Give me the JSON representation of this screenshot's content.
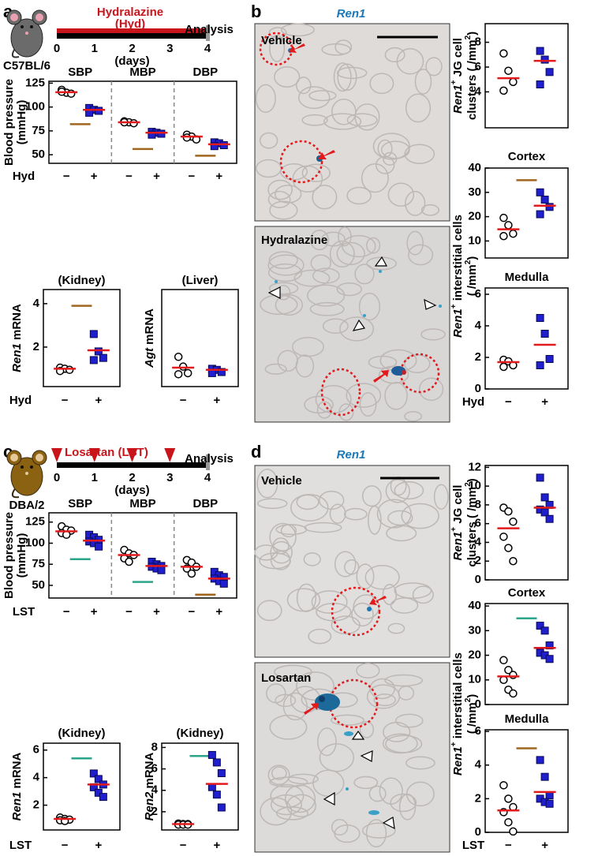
{
  "panels": {
    "a": {
      "letter": "a",
      "drug": "Hydralazine",
      "drug_abbr": "(Hyd)",
      "end": "Analysis",
      "strain": "C57BL/6",
      "days": [
        0,
        1,
        2,
        3,
        4
      ],
      "days_label": "(days)"
    },
    "b": {
      "letter": "b",
      "stain": "Ren1",
      "images": [
        "Vehicle",
        "Hydralazine"
      ],
      "shared_ylabel": [
        [
          {
            "t": "Ren1",
            "i": true
          },
          {
            "t": "+",
            "s": true
          },
          {
            "t": " interstitial cells"
          }
        ],
        [
          {
            "t": "( /mm"
          },
          {
            "t": "2",
            "s": true
          },
          {
            "t": ")"
          }
        ]
      ]
    },
    "c": {
      "letter": "c",
      "drug": "Losartan (LST)",
      "end": "Analysis",
      "strain": "DBA/2",
      "days": [
        0,
        1,
        2,
        3,
        4
      ],
      "dose_days": [
        0,
        1,
        2,
        3
      ],
      "days_label": "(days)"
    },
    "d": {
      "letter": "d",
      "stain": "Ren1",
      "images": [
        "Vehicle",
        "Losartan"
      ],
      "shared_ylabel": [
        [
          {
            "t": "Ren1",
            "i": true
          },
          {
            "t": "+",
            "s": true
          },
          {
            "t": " interstitial cells"
          }
        ],
        [
          {
            "t": "( /mm"
          },
          {
            "t": "2",
            "s": true
          },
          {
            "t": ")"
          }
        ]
      ]
    }
  },
  "chart_data": [
    {
      "type": "dot",
      "ylabel": [
        [
          {
            "t": "Blood pressure"
          }
        ],
        [
          {
            "t": "(mmHg)"
          }
        ]
      ],
      "ylim": [
        41,
        127
      ],
      "yticks": [
        50,
        75,
        100,
        125
      ],
      "x_label": "Hyd",
      "x_categories": [
        "−",
        "+"
      ],
      "marker_colors": [
        "#ffffff",
        "#1f1fd0"
      ],
      "mean_color": "#e31a1c",
      "groups": [
        {
          "label": "SBP",
          "values": [
            [
              118,
              115,
              114,
              116
            ],
            [
              99,
              97,
              96,
              94
            ]
          ],
          "means": [
            115.5,
            97
          ],
          "ref": 82,
          "ref_color": "#a0661e"
        },
        {
          "label": "MBP",
          "values": [
            [
              85,
              84,
              83,
              84
            ],
            [
              74,
              73,
              72,
              71
            ]
          ],
          "means": [
            84,
            73
          ],
          "ref": 56,
          "ref_color": "#a0661e"
        },
        {
          "label": "DBP",
          "values": [
            [
              71,
              69,
              66,
              68
            ],
            [
              63,
              62,
              60,
              59
            ]
          ],
          "means": [
            69,
            61
          ],
          "ref": 49,
          "ref_color": "#a0661e"
        }
      ]
    },
    {
      "type": "dot",
      "title": "(Kidney)",
      "ylabel": [
        [
          {
            "t": "Ren1",
            "i": true
          },
          {
            "t": " mRNA"
          }
        ]
      ],
      "ylim": [
        0.18,
        4.65
      ],
      "yticks": [
        2,
        4
      ],
      "x_label": "Hyd",
      "x_categories": [
        "−",
        "+"
      ],
      "marker_colors": [
        "#ffffff",
        "#1f1fd0"
      ],
      "mean_color": "#e31a1c",
      "groups": [
        {
          "values": [
            [
              1.05,
              1.0,
              0.95,
              0.9
            ],
            [
              2.6,
              1.8,
              1.5,
              1.4
            ]
          ],
          "means": [
            1.0,
            1.85
          ],
          "ref": 3.9,
          "ref_color": "#a0661e"
        }
      ]
    },
    {
      "type": "dot",
      "title": "(Liver)",
      "ylabel": [
        [
          {
            "t": "Agt",
            "i": true
          },
          {
            "t": " mRNA"
          }
        ]
      ],
      "ylim": [
        0.18,
        4.65
      ],
      "yticks": [],
      "x_categories": [
        "−",
        "+"
      ],
      "marker_colors": [
        "#ffffff",
        "#1f1fd0"
      ],
      "mean_color": "#e31a1c",
      "groups": [
        {
          "values": [
            [
              1.55,
              1.1,
              0.8,
              0.75
            ],
            [
              1.0,
              0.95,
              0.85,
              0.8
            ]
          ],
          "means": [
            1.05,
            0.95
          ]
        }
      ]
    },
    {
      "type": "dot",
      "ylabel": [
        [
          {
            "t": "Ren1",
            "i": true
          },
          {
            "t": "+",
            "s": true
          },
          {
            "t": " JG cell"
          }
        ],
        [
          {
            "t": "clusters ( /mm"
          },
          {
            "t": "2",
            "s": true
          },
          {
            "t": ")"
          }
        ]
      ],
      "ylim": [
        1.1,
        9.5
      ],
      "yticks": [
        4,
        6,
        8
      ],
      "x_categories": [
        "−",
        "+"
      ],
      "marker_colors": [
        "#ffffff",
        "#1f1fd0"
      ],
      "mean_color": "#e31a1c",
      "groups": [
        {
          "values": [
            [
              7.1,
              5.7,
              4.8,
              4.1
            ],
            [
              7.3,
              6.6,
              5.6,
              4.6
            ]
          ],
          "means": [
            5.1,
            6.5
          ]
        }
      ]
    },
    {
      "type": "dot",
      "title": "Cortex",
      "ylim": [
        3,
        40
      ],
      "yticks": [
        10,
        20,
        30,
        40
      ],
      "x_categories": [
        "−",
        "+"
      ],
      "marker_colors": [
        "#ffffff",
        "#1f1fd0"
      ],
      "mean_color": "#e31a1c",
      "groups": [
        {
          "values": [
            [
              19.5,
              16.5,
              13,
              12
            ],
            [
              30,
              27,
              24,
              21
            ]
          ],
          "means": [
            14.8,
            24.5
          ],
          "ref": 35,
          "ref_color": "#a0661e"
        }
      ]
    },
    {
      "type": "dot",
      "title": "Medulla",
      "ylim": [
        0,
        6.4
      ],
      "yticks": [
        0,
        2,
        4,
        6
      ],
      "x_label": "Hyd",
      "x_categories": [
        "−",
        "+"
      ],
      "marker_colors": [
        "#ffffff",
        "#1f1fd0"
      ],
      "mean_color": "#e31a1c",
      "groups": [
        {
          "values": [
            [
              1.85,
              1.75,
              1.5,
              1.4
            ],
            [
              4.5,
              3.5,
              1.9,
              1.5
            ]
          ],
          "means": [
            1.7,
            2.8
          ]
        }
      ]
    },
    {
      "type": "dot",
      "ylabel": [
        [
          {
            "t": "Blood pressure"
          }
        ],
        [
          {
            "t": "(mmHg)"
          }
        ]
      ],
      "ylim": [
        35,
        136
      ],
      "yticks": [
        50,
        75,
        100,
        125
      ],
      "x_label": "LST",
      "x_categories": [
        "−",
        "+"
      ],
      "marker_colors": [
        "#ffffff",
        "#1f1fd0"
      ],
      "mean_color": "#e31a1c",
      "groups": [
        {
          "label": "SBP",
          "values": [
            [
              120,
              116,
              115,
              112,
              110
            ],
            [
              110,
              107,
              104,
              102,
              100,
              96
            ]
          ],
          "means": [
            114,
            103
          ],
          "ref": 81,
          "ref_color": "#2aa58a"
        },
        {
          "label": "MBP",
          "values": [
            [
              92,
              88,
              86,
              82,
              78
            ],
            [
              78,
              75,
              73,
              72,
              70,
              68
            ]
          ],
          "means": [
            86,
            73
          ],
          "ref": 54,
          "ref_color": "#2aa58a"
        },
        {
          "label": "DBP",
          "values": [
            [
              80,
              77,
              72,
              70,
              64
            ],
            [
              66,
              62,
              60,
              58,
              55,
              52
            ]
          ],
          "means": [
            72,
            58
          ],
          "ref": 39,
          "ref_color": "#a0661e"
        }
      ]
    },
    {
      "type": "dot",
      "title": "(Kidney)",
      "ylabel": [
        [
          {
            "t": "Ren1",
            "i": true
          },
          {
            "t": " mRNA"
          }
        ]
      ],
      "ylim": [
        0.2,
        6.5
      ],
      "yticks": [
        2,
        4,
        6
      ],
      "x_label": "LST",
      "x_categories": [
        "−",
        "+"
      ],
      "marker_colors": [
        "#ffffff",
        "#1f1fd0"
      ],
      "mean_color": "#e31a1c",
      "groups": [
        {
          "values": [
            [
              1.1,
              1.0,
              0.95,
              0.9,
              0.85
            ],
            [
              4.3,
              3.9,
              3.5,
              3.3,
              2.9,
              2.6
            ]
          ],
          "means": [
            1.0,
            3.5
          ],
          "ref": 5.4,
          "ref_color": "#2aa58a"
        }
      ]
    },
    {
      "type": "dot",
      "title": "(Kidney)",
      "ylabel": [
        [
          {
            "t": "Ren2",
            "i": true
          },
          {
            "t": " mRNA"
          }
        ]
      ],
      "ylim": [
        0.3,
        8.4
      ],
      "yticks": [
        2,
        4,
        6,
        8
      ],
      "x_categories": [
        "−",
        "+"
      ],
      "marker_colors": [
        "#ffffff",
        "#1f1fd0"
      ],
      "mean_color": "#e31a1c",
      "groups": [
        {
          "values": [
            [
              0.9,
              0.85,
              0.85,
              0.8,
              0.8,
              0.8
            ],
            [
              7.3,
              6.6,
              5.6,
              4.3,
              3.6,
              2.4
            ]
          ],
          "means": [
            0.85,
            4.6
          ],
          "ref": 7.2,
          "ref_color": "#2aa58a"
        }
      ]
    },
    {
      "type": "dot",
      "ylabel": [
        [
          {
            "t": "Ren1",
            "i": true
          },
          {
            "t": "+",
            "s": true
          },
          {
            "t": " JG cell"
          }
        ],
        [
          {
            "t": "clusters ( /mm"
          },
          {
            "t": "2",
            "s": true
          },
          {
            "t": ")"
          }
        ]
      ],
      "ylim": [
        0,
        12.2
      ],
      "yticks": [
        0,
        2,
        4,
        6,
        8,
        10,
        12
      ],
      "x_categories": [
        "−",
        "+"
      ],
      "marker_colors": [
        "#ffffff",
        "#1f1fd0"
      ],
      "mean_color": "#e31a1c",
      "groups": [
        {
          "values": [
            [
              7.7,
              7.3,
              6.2,
              4.6,
              3.4,
              2.0
            ],
            [
              10.9,
              8.8,
              8.0,
              7.5,
              7.2,
              6.5
            ]
          ],
          "means": [
            5.5,
            7.7
          ]
        }
      ]
    },
    {
      "type": "dot",
      "title": "Cortex",
      "ylim": [
        0,
        41
      ],
      "yticks": [
        0,
        10,
        20,
        30,
        40
      ],
      "x_categories": [
        "−",
        "+"
      ],
      "marker_colors": [
        "#ffffff",
        "#1f1fd0"
      ],
      "mean_color": "#e31a1c",
      "groups": [
        {
          "values": [
            [
              18,
              14,
              12,
              10,
              6,
              4.5
            ],
            [
              32,
              30,
              24,
              21,
              20,
              18.5
            ]
          ],
          "means": [
            11.4,
            23
          ],
          "ref": 35,
          "ref_color": "#2aa58a"
        }
      ]
    },
    {
      "type": "dot",
      "title": "Medulla",
      "ylim": [
        0,
        6.1
      ],
      "yticks": [
        0,
        2,
        4,
        6
      ],
      "x_label": "LST",
      "x_categories": [
        "−",
        "+"
      ],
      "marker_colors": [
        "#ffffff",
        "#1f1fd0"
      ],
      "mean_color": "#e31a1c",
      "groups": [
        {
          "values": [
            [
              2.8,
              2.0,
              1.5,
              1.2,
              0.6,
              0.05
            ],
            [
              4.3,
              3.3,
              2.2,
              2.0,
              1.8,
              1.7
            ]
          ],
          "means": [
            1.3,
            2.4
          ],
          "ref": 5,
          "ref_color": "#a0661e"
        }
      ]
    }
  ]
}
